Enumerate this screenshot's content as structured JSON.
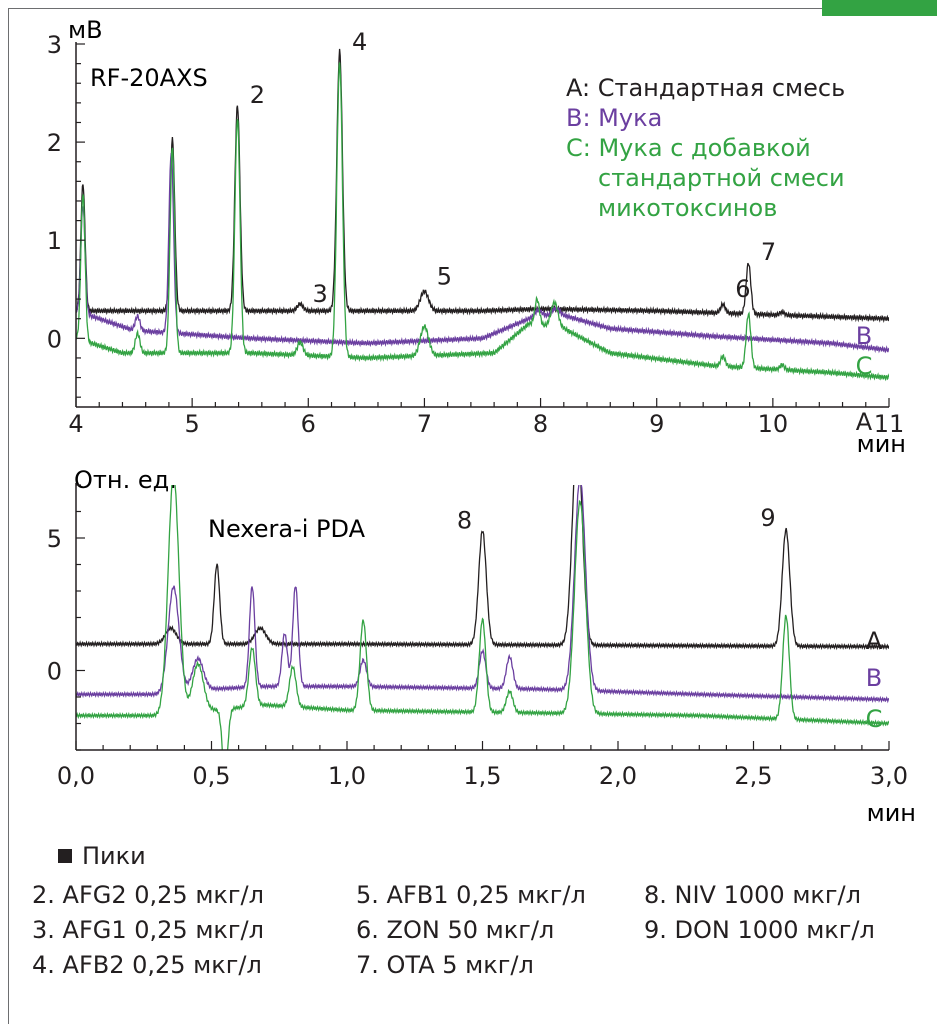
{
  "colors": {
    "series_A": "#231f20",
    "series_B": "#6b3fa0",
    "series_C": "#33a343",
    "axis": "#231f20",
    "frame": "#6d6e70",
    "accent_tab": "#33a343"
  },
  "chart_data": [
    {
      "type": "line",
      "ylabel": "мВ",
      "xlabel": "мин",
      "xlim": [
        4,
        11
      ],
      "ylim": [
        -0.7,
        3
      ],
      "xticks": [
        "4",
        "5",
        "6",
        "7",
        "8",
        "9",
        "10",
        "11"
      ],
      "yticks": [
        "3",
        "2",
        "1",
        "0"
      ],
      "annotation": "RF-20AXS",
      "legend": {
        "position": "top-right",
        "entries": [
          {
            "series": "A",
            "text": "A: Стандартная смесь"
          },
          {
            "series": "B",
            "text": "B: Мука"
          },
          {
            "series": "C",
            "lines": [
              "C: Мука с добавкой",
              "стандартной смеси",
              "микотоксинов"
            ]
          }
        ]
      },
      "peak_labels": [
        {
          "label": "2",
          "x": 5.39,
          "y": 2.36
        },
        {
          "label": "3",
          "x": 5.93,
          "y": 0.33
        },
        {
          "label": "4",
          "x": 6.27,
          "y": 2.9
        },
        {
          "label": "5",
          "x": 7.0,
          "y": 0.51
        },
        {
          "label": "6",
          "x": 9.57,
          "y": 0.38
        },
        {
          "label": "7",
          "x": 9.79,
          "y": 0.76
        }
      ],
      "series": [
        {
          "name": "A",
          "baseline": [
            [
              4.0,
              0.28
            ],
            [
              7.5,
              0.28
            ],
            [
              8.0,
              0.3
            ],
            [
              9.0,
              0.28
            ],
            [
              10.0,
              0.24
            ],
            [
              11.0,
              0.2
            ]
          ],
          "peaks": [
            [
              4.06,
              1.3,
              0.018
            ],
            [
              4.83,
              1.75,
              0.02
            ],
            [
              5.39,
              2.1,
              0.022
            ],
            [
              5.93,
              0.07,
              0.025
            ],
            [
              6.27,
              2.65,
              0.024
            ],
            [
              7.0,
              0.2,
              0.035
            ],
            [
              9.57,
              0.09,
              0.02
            ],
            [
              9.79,
              0.52,
              0.02
            ],
            [
              10.08,
              0.03,
              0.02
            ]
          ]
        },
        {
          "name": "B",
          "baseline": [
            [
              4.0,
              0.28
            ],
            [
              4.5,
              0.08
            ],
            [
              5.5,
              0.0
            ],
            [
              6.5,
              -0.05
            ],
            [
              7.5,
              0.0
            ],
            [
              7.9,
              0.2
            ],
            [
              8.15,
              0.25
            ],
            [
              8.6,
              0.1
            ],
            [
              9.5,
              0.02
            ],
            [
              10.5,
              -0.05
            ],
            [
              11.0,
              -0.12
            ]
          ],
          "peaks": [
            [
              4.06,
              1.1,
              0.018
            ],
            [
              4.53,
              0.15,
              0.02
            ],
            [
              4.82,
              1.85,
              0.02
            ],
            [
              7.98,
              0.07,
              0.03
            ],
            [
              8.13,
              0.06,
              0.03
            ]
          ]
        },
        {
          "name": "C",
          "baseline": [
            [
              4.0,
              0.0
            ],
            [
              4.4,
              -0.15
            ],
            [
              5.5,
              -0.15
            ],
            [
              6.5,
              -0.2
            ],
            [
              7.6,
              -0.15
            ],
            [
              7.9,
              0.15
            ],
            [
              8.2,
              0.1
            ],
            [
              8.6,
              -0.15
            ],
            [
              9.5,
              -0.28
            ],
            [
              10.5,
              -0.35
            ],
            [
              11.0,
              -0.4
            ]
          ],
          "peaks": [
            [
              4.06,
              1.5,
              0.018
            ],
            [
              4.53,
              0.2,
              0.02
            ],
            [
              4.83,
              2.1,
              0.02
            ],
            [
              5.39,
              2.4,
              0.022
            ],
            [
              5.93,
              0.13,
              0.025
            ],
            [
              6.27,
              3.0,
              0.024
            ],
            [
              7.0,
              0.3,
              0.035
            ],
            [
              7.97,
              0.26,
              0.02
            ],
            [
              8.12,
              0.25,
              0.03
            ],
            [
              9.57,
              0.1,
              0.02
            ],
            [
              9.79,
              0.55,
              0.02
            ],
            [
              10.08,
              0.05,
              0.02
            ]
          ]
        }
      ]
    },
    {
      "type": "line",
      "ylabel": "Отн. ед.",
      "xlabel": "мин",
      "xlim": [
        0.0,
        3.0
      ],
      "ylim": [
        -3,
        7
      ],
      "xticks": [
        "0,0",
        "0,5",
        "1,0",
        "1,5",
        "2,0",
        "2,5",
        "3,0"
      ],
      "yticks": [
        "5",
        "0"
      ],
      "annotation": "Nexera-i PDA",
      "peak_labels": [
        {
          "label": "8",
          "x": 1.5,
          "y": 5.2
        },
        {
          "label": "9",
          "x": 2.62,
          "y": 5.3
        }
      ],
      "series": [
        {
          "name": "A",
          "baseline": [
            [
              0.0,
              1.0
            ],
            [
              1.0,
              1.0
            ],
            [
              2.0,
              0.95
            ],
            [
              3.0,
              0.9
            ]
          ],
          "peaks": [
            [
              0.35,
              0.6,
              0.02
            ],
            [
              0.52,
              3.0,
              0.01
            ],
            [
              0.68,
              0.6,
              0.02
            ],
            [
              1.5,
              4.3,
              0.014
            ],
            [
              1.85,
              8.0,
              0.018
            ],
            [
              2.62,
              4.4,
              0.014
            ]
          ]
        },
        {
          "name": "B",
          "baseline": [
            [
              0.0,
              -0.9
            ],
            [
              0.3,
              -0.9
            ],
            [
              0.5,
              -0.7
            ],
            [
              0.7,
              -0.6
            ],
            [
              1.0,
              -0.6
            ],
            [
              1.7,
              -0.7
            ],
            [
              2.3,
              -0.9
            ],
            [
              3.0,
              -1.1
            ]
          ],
          "peaks": [
            [
              0.36,
              4.0,
              0.02
            ],
            [
              0.45,
              1.2,
              0.02
            ],
            [
              0.65,
              3.8,
              0.01
            ],
            [
              0.77,
              2.0,
              0.01
            ],
            [
              0.81,
              3.8,
              0.01
            ],
            [
              1.06,
              1.0,
              0.012
            ],
            [
              1.5,
              1.4,
              0.012
            ],
            [
              1.6,
              1.2,
              0.012
            ],
            [
              1.86,
              8.0,
              0.02
            ]
          ]
        },
        {
          "name": "C",
          "baseline": [
            [
              0.0,
              -1.7
            ],
            [
              0.3,
              -1.7
            ],
            [
              0.5,
              -1.5
            ],
            [
              0.7,
              -1.3
            ],
            [
              1.0,
              -1.5
            ],
            [
              1.7,
              -1.6
            ],
            [
              2.3,
              -1.7
            ],
            [
              3.0,
              -2.0
            ]
          ],
          "peaks": [
            [
              0.36,
              9.0,
              0.02
            ],
            [
              0.45,
              1.8,
              0.02
            ],
            [
              0.55,
              -2.5,
              0.01
            ],
            [
              0.65,
              2.2,
              0.012
            ],
            [
              0.8,
              1.5,
              0.012
            ],
            [
              1.06,
              3.4,
              0.012
            ],
            [
              1.5,
              3.5,
              0.012
            ],
            [
              1.6,
              0.8,
              0.012
            ],
            [
              1.86,
              8.0,
              0.02
            ],
            [
              2.62,
              3.9,
              0.012
            ]
          ]
        }
      ]
    }
  ],
  "peaks_list": {
    "heading": "Пики",
    "columns": [
      [
        "2. AFG2 0,25 мкг/л",
        "3. AFG1 0,25 мкг/л",
        "4. AFB2 0,25 мкг/л"
      ],
      [
        "5. AFB1 0,25 мкг/л",
        "6. ZON 50 мкг/л",
        "7. OTA 5 мкг/л"
      ],
      [
        "8. NIV 1000 мкг/л",
        "9. DON 1000 мкг/л"
      ]
    ]
  }
}
